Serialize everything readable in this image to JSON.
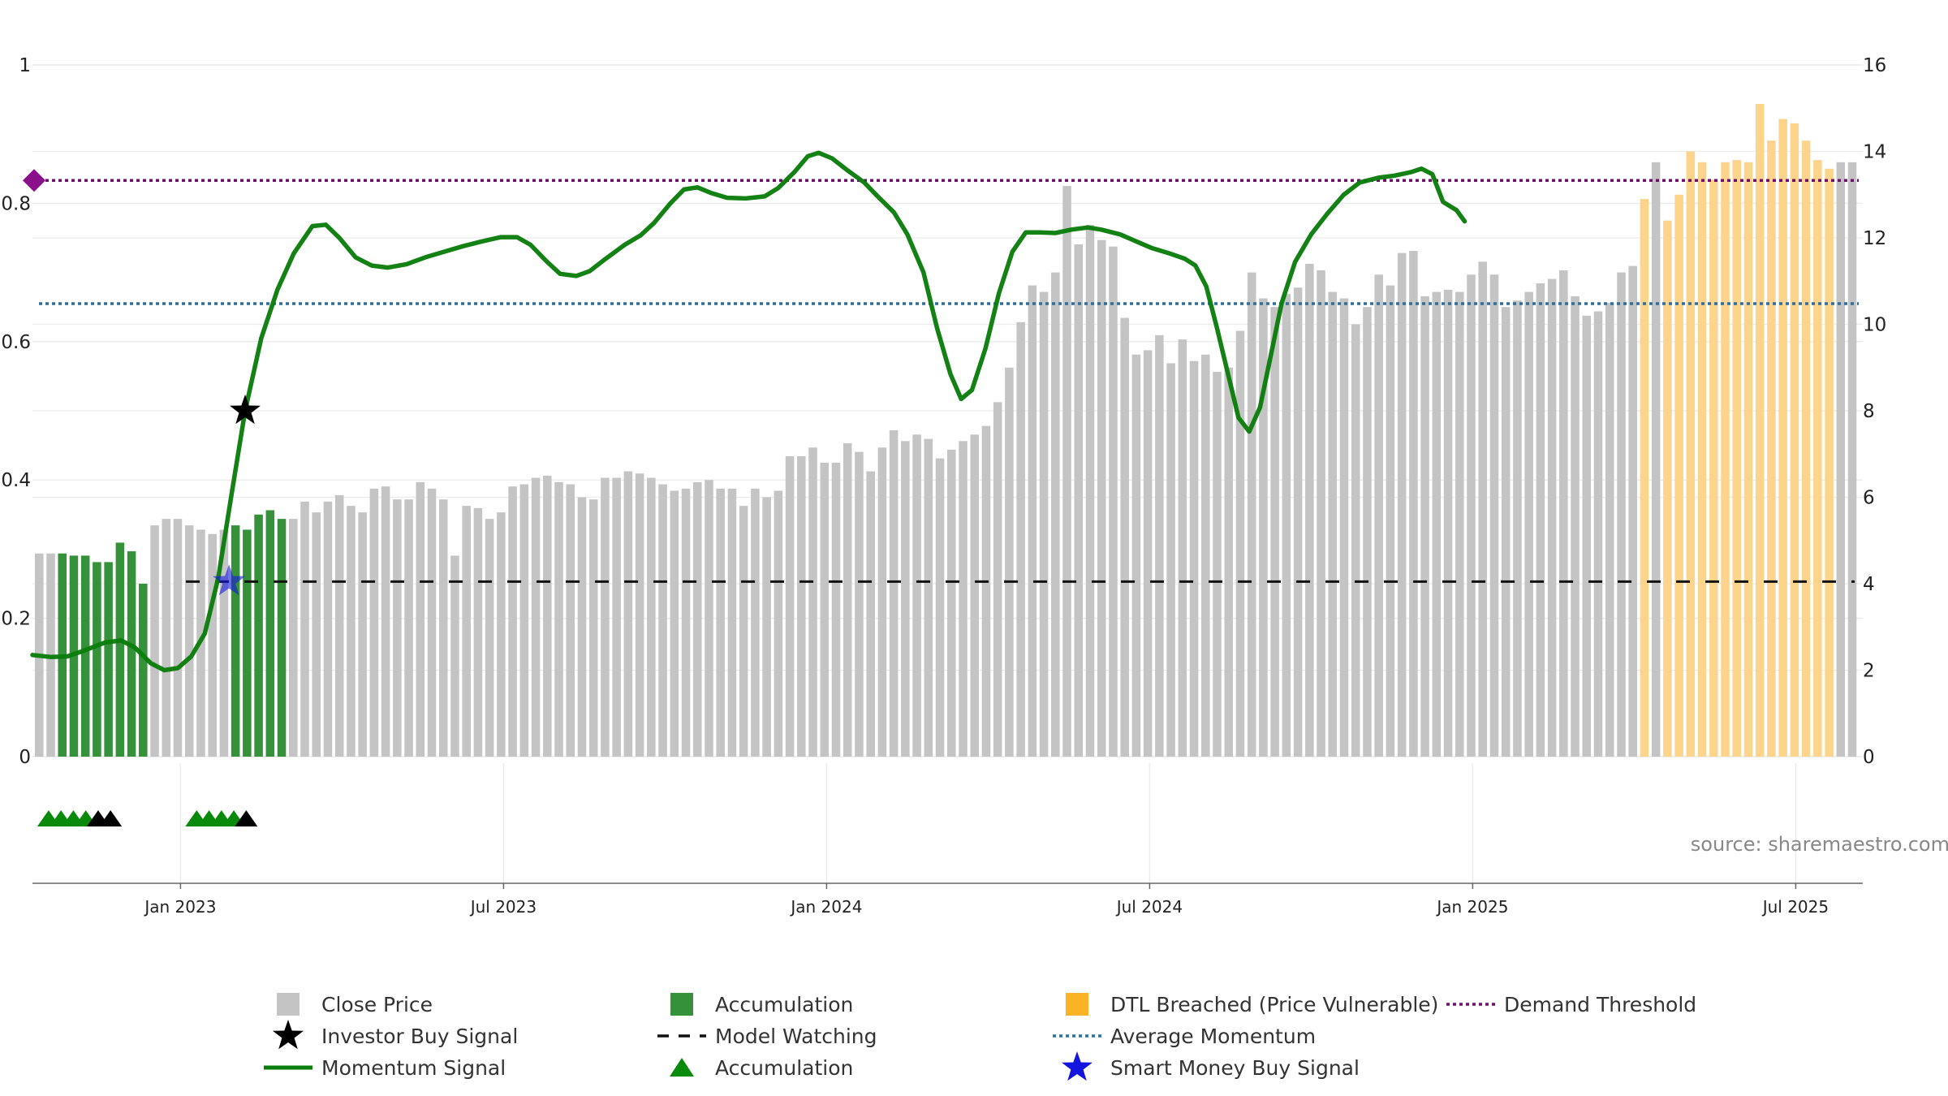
{
  "chart_data": {
    "type": "bar",
    "left_axis": {
      "ylim": [
        0,
        1
      ],
      "ticks": [
        0,
        0.2,
        0.4,
        0.6,
        0.8,
        1
      ],
      "tick_labels": [
        "0",
        "0.2",
        "0.4",
        "0.6",
        "0.8",
        "1"
      ]
    },
    "right_axis": {
      "ylim": [
        0,
        16
      ],
      "ticks": [
        0,
        2,
        4,
        6,
        8,
        10,
        12,
        14,
        16
      ],
      "tick_labels": [
        "0",
        "2",
        "4",
        "6",
        "8",
        "10",
        "12",
        "14",
        "16"
      ]
    },
    "x_axis": {
      "start_month": 9.25,
      "end_month": 43.2,
      "ticks": [
        {
          "month": 12,
          "label": "Jan 2023"
        },
        {
          "month": 18,
          "label": "Jul 2023"
        },
        {
          "month": 24,
          "label": "Jan 2024"
        },
        {
          "month": 30,
          "label": "Jul 2024"
        },
        {
          "month": 36,
          "label": "Jan 2025"
        },
        {
          "month": 42,
          "label": "Jul 2025"
        }
      ]
    },
    "close_price": [
      4.7,
      4.7,
      4.7,
      4.65,
      4.65,
      4.5,
      4.5,
      4.95,
      4.75,
      4.0,
      5.35,
      5.5,
      5.5,
      5.35,
      5.25,
      5.15,
      5.25,
      5.35,
      5.25,
      5.6,
      5.7,
      5.5,
      5.5,
      5.9,
      5.65,
      5.9,
      6.05,
      5.8,
      5.65,
      6.2,
      6.25,
      5.95,
      5.95,
      6.35,
      6.2,
      5.95,
      4.65,
      5.8,
      5.75,
      5.5,
      5.65,
      6.25,
      6.3,
      6.45,
      6.5,
      6.35,
      6.3,
      6.0,
      5.95,
      6.45,
      6.45,
      6.6,
      6.55,
      6.45,
      6.3,
      6.15,
      6.2,
      6.35,
      6.4,
      6.2,
      6.2,
      5.8,
      6.2,
      6.0,
      6.15,
      6.95,
      6.95,
      7.15,
      6.8,
      6.8,
      7.25,
      7.05,
      6.6,
      7.15,
      7.55,
      7.3,
      7.45,
      7.35,
      6.9,
      7.1,
      7.3,
      7.45,
      7.65,
      8.2,
      9.0,
      10.05,
      10.9,
      10.75,
      11.2,
      13.2,
      11.85,
      12.3,
      11.95,
      11.8,
      10.15,
      9.3,
      9.4,
      9.75,
      9.1,
      9.65,
      9.15,
      9.3,
      8.9,
      9.0,
      9.85,
      11.2,
      10.6,
      10.4,
      10.7,
      10.85,
      11.4,
      11.25,
      10.75,
      10.6,
      10.0,
      10.4,
      11.15,
      10.9,
      11.65,
      11.7,
      10.65,
      10.75,
      10.8,
      10.75,
      11.15,
      11.45,
      11.15,
      10.4,
      10.55,
      10.75,
      10.95,
      11.05,
      11.25,
      10.65,
      10.2,
      10.3,
      10.5,
      11.2,
      11.35,
      12.9,
      13.75,
      12.4,
      13.0,
      14.0,
      13.75,
      13.35,
      13.75,
      13.8,
      13.75,
      15.1,
      14.25,
      14.75,
      14.65,
      14.25,
      13.8,
      13.6,
      13.75,
      13.75
    ],
    "bar_types": [
      "accumulation",
      "close",
      "dtl"
    ],
    "accumulation_bar_ranges": [
      [
        2,
        9
      ],
      [
        17,
        21
      ]
    ],
    "dtl_bar_ranges": [
      [
        139,
        139
      ],
      [
        141,
        155
      ]
    ],
    "momentum_signal": [
      [
        9.25,
        0.147
      ],
      [
        9.6,
        0.144
      ],
      [
        9.9,
        0.145
      ],
      [
        10.2,
        0.153
      ],
      [
        10.6,
        0.165
      ],
      [
        10.9,
        0.168
      ],
      [
        11.15,
        0.158
      ],
      [
        11.45,
        0.135
      ],
      [
        11.7,
        0.125
      ],
      [
        11.95,
        0.128
      ],
      [
        12.2,
        0.145
      ],
      [
        12.45,
        0.178
      ],
      [
        12.7,
        0.258
      ],
      [
        12.95,
        0.38
      ],
      [
        13.2,
        0.5
      ],
      [
        13.5,
        0.605
      ],
      [
        13.8,
        0.675
      ],
      [
        14.1,
        0.727
      ],
      [
        14.45,
        0.767
      ],
      [
        14.7,
        0.769
      ],
      [
        14.95,
        0.75
      ],
      [
        15.25,
        0.722
      ],
      [
        15.55,
        0.71
      ],
      [
        15.85,
        0.707
      ],
      [
        16.2,
        0.712
      ],
      [
        16.55,
        0.722
      ],
      [
        16.9,
        0.73
      ],
      [
        17.25,
        0.738
      ],
      [
        17.6,
        0.745
      ],
      [
        17.95,
        0.751
      ],
      [
        18.25,
        0.751
      ],
      [
        18.5,
        0.74
      ],
      [
        18.8,
        0.716
      ],
      [
        19.05,
        0.698
      ],
      [
        19.35,
        0.695
      ],
      [
        19.6,
        0.702
      ],
      [
        19.9,
        0.72
      ],
      [
        20.25,
        0.74
      ],
      [
        20.55,
        0.754
      ],
      [
        20.8,
        0.772
      ],
      [
        21.1,
        0.8
      ],
      [
        21.35,
        0.82
      ],
      [
        21.6,
        0.823
      ],
      [
        21.85,
        0.815
      ],
      [
        22.15,
        0.808
      ],
      [
        22.5,
        0.807
      ],
      [
        22.85,
        0.81
      ],
      [
        23.1,
        0.822
      ],
      [
        23.4,
        0.845
      ],
      [
        23.65,
        0.868
      ],
      [
        23.85,
        0.873
      ],
      [
        24.1,
        0.865
      ],
      [
        24.4,
        0.847
      ],
      [
        24.7,
        0.83
      ],
      [
        24.95,
        0.81
      ],
      [
        25.25,
        0.787
      ],
      [
        25.5,
        0.755
      ],
      [
        25.8,
        0.7
      ],
      [
        26.05,
        0.62
      ],
      [
        26.3,
        0.553
      ],
      [
        26.5,
        0.517
      ],
      [
        26.7,
        0.53
      ],
      [
        26.95,
        0.59
      ],
      [
        27.2,
        0.67
      ],
      [
        27.45,
        0.73
      ],
      [
        27.7,
        0.758
      ],
      [
        27.95,
        0.758
      ],
      [
        28.25,
        0.757
      ],
      [
        28.55,
        0.762
      ],
      [
        28.85,
        0.765
      ],
      [
        29.1,
        0.762
      ],
      [
        29.45,
        0.755
      ],
      [
        29.75,
        0.745
      ],
      [
        30.05,
        0.735
      ],
      [
        30.35,
        0.728
      ],
      [
        30.65,
        0.72
      ],
      [
        30.85,
        0.71
      ],
      [
        31.05,
        0.68
      ],
      [
        31.25,
        0.62
      ],
      [
        31.45,
        0.555
      ],
      [
        31.65,
        0.49
      ],
      [
        31.85,
        0.47
      ],
      [
        32.05,
        0.505
      ],
      [
        32.25,
        0.58
      ],
      [
        32.45,
        0.655
      ],
      [
        32.7,
        0.715
      ],
      [
        33.0,
        0.755
      ],
      [
        33.3,
        0.785
      ],
      [
        33.6,
        0.812
      ],
      [
        33.9,
        0.83
      ],
      [
        34.25,
        0.837
      ],
      [
        34.55,
        0.84
      ],
      [
        34.85,
        0.845
      ],
      [
        35.05,
        0.85
      ],
      [
        35.25,
        0.842
      ],
      [
        35.45,
        0.802
      ],
      [
        35.7,
        0.79
      ],
      [
        35.85,
        0.774
      ]
    ],
    "smart_money_buy_signal": {
      "month": 12.9,
      "value": 4.05
    },
    "investor_buy_signal": {
      "month": 13.2,
      "value": 0.5
    },
    "model_watching_level": 4.05,
    "model_watching_start_month": 12.1,
    "average_momentum": 0.655,
    "demand_threshold": 0.833,
    "accumulation_markers": [
      {
        "month": 9.55,
        "color": "green"
      },
      {
        "month": 9.78,
        "color": "green"
      },
      {
        "month": 10.01,
        "color": "green"
      },
      {
        "month": 10.24,
        "color": "green"
      },
      {
        "month": 10.47,
        "color": "black"
      },
      {
        "month": 10.7,
        "color": "black"
      },
      {
        "month": 12.3,
        "color": "green"
      },
      {
        "month": 12.53,
        "color": "green"
      },
      {
        "month": 12.76,
        "color": "green"
      },
      {
        "month": 12.99,
        "color": "green"
      },
      {
        "month": 13.22,
        "color": "black"
      }
    ],
    "legend": [
      {
        "label": "Close Price",
        "marker": "grey-square"
      },
      {
        "label": "Investor Buy Signal",
        "marker": "black-star"
      },
      {
        "label": "Momentum Signal",
        "marker": "green-line"
      },
      {
        "label": "Accumulation",
        "marker": "green-square"
      },
      {
        "label": "Model Watching",
        "marker": "black-dash"
      },
      {
        "label": "Accumulation",
        "marker": "green-triangle"
      },
      {
        "label": "DTL Breached (Price Vulnerable)",
        "marker": "orange-square"
      },
      {
        "label": "Average Momentum",
        "marker": "blue-dotted"
      },
      {
        "label": "Smart Money Buy Signal",
        "marker": "blue-star"
      },
      {
        "label": "Demand Threshold",
        "marker": "purple-dotted"
      }
    ],
    "source": "source: sharemaestro.com",
    "colors": {
      "close": "#c4c4c4",
      "accumulation": "#35913a",
      "dtl": "#fdd48b",
      "momentum": "#0b7d0b",
      "average_momentum": "#2f6f9f",
      "demand_threshold": "#6e0f6e",
      "model_watching": "#111111",
      "smart_money": "#1515e0",
      "investor": "#000000",
      "triangle_green": "#0a8a0a",
      "triangle_black": "#000000",
      "grid": "#ececec"
    }
  }
}
